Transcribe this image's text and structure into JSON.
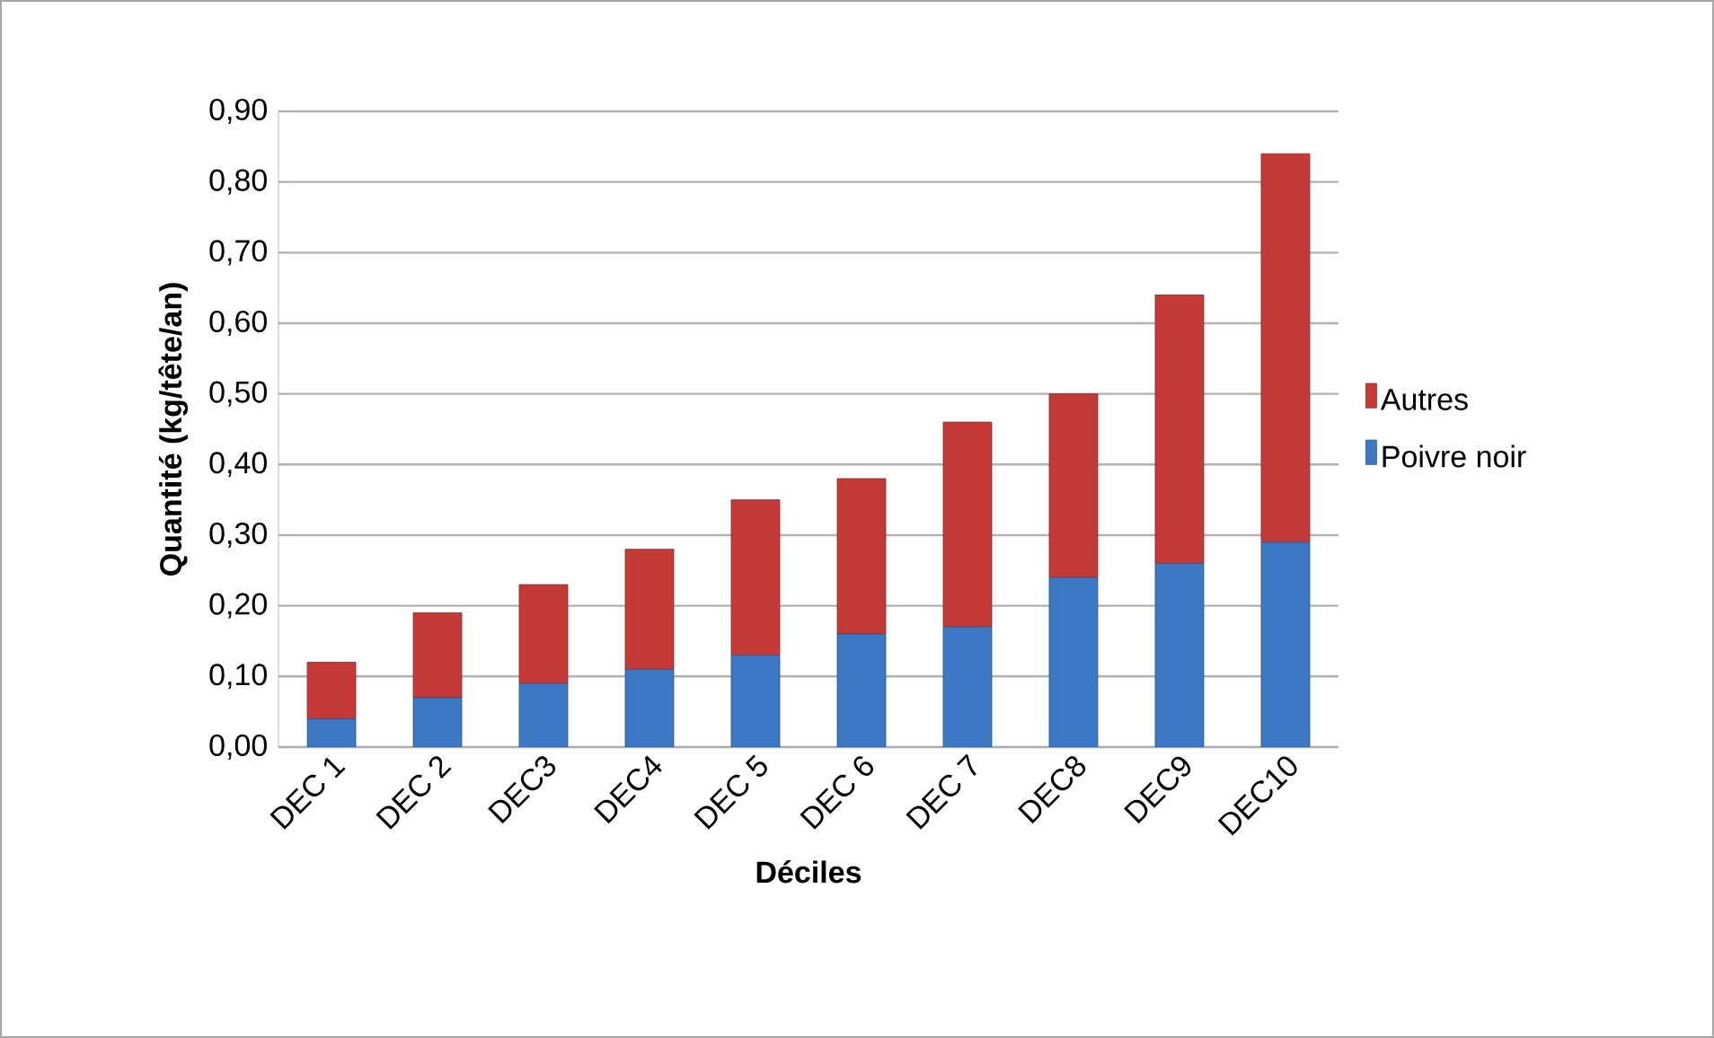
{
  "chart_data": {
    "type": "bar",
    "stacked": true,
    "xlabel": "Déciles",
    "ylabel": "Quantité (kg/tête/an)",
    "categories": [
      "DEC 1",
      "DEC 2",
      "DEC3",
      "DEC4",
      "DEC 5",
      "DEC 6",
      "DEC 7",
      "DEC8",
      "DEC9",
      "DEC10"
    ],
    "series": [
      {
        "name": "Poivre noir",
        "color": "#3d78c4",
        "values": [
          0.04,
          0.07,
          0.09,
          0.11,
          0.13,
          0.16,
          0.17,
          0.24,
          0.26,
          0.29
        ]
      },
      {
        "name": "Autres",
        "color": "#c53a37",
        "values": [
          0.08,
          0.12,
          0.14,
          0.17,
          0.22,
          0.22,
          0.29,
          0.26,
          0.38,
          0.55
        ]
      }
    ],
    "ylim": [
      0,
      0.9
    ],
    "yticks": [
      {
        "value": 0,
        "label": "0,00"
      },
      {
        "value": 0.1,
        "label": "0,10"
      },
      {
        "value": 0.2,
        "label": "0,20"
      },
      {
        "value": 0.3,
        "label": "0,30"
      },
      {
        "value": 0.4,
        "label": "0,40"
      },
      {
        "value": 0.5,
        "label": "0,50"
      },
      {
        "value": 0.6,
        "label": "0,60"
      },
      {
        "value": 0.7,
        "label": "0,70"
      },
      {
        "value": 0.8,
        "label": "0,80"
      },
      {
        "value": 0.9,
        "label": "0,90"
      }
    ],
    "grid": "y",
    "legend": "right"
  }
}
